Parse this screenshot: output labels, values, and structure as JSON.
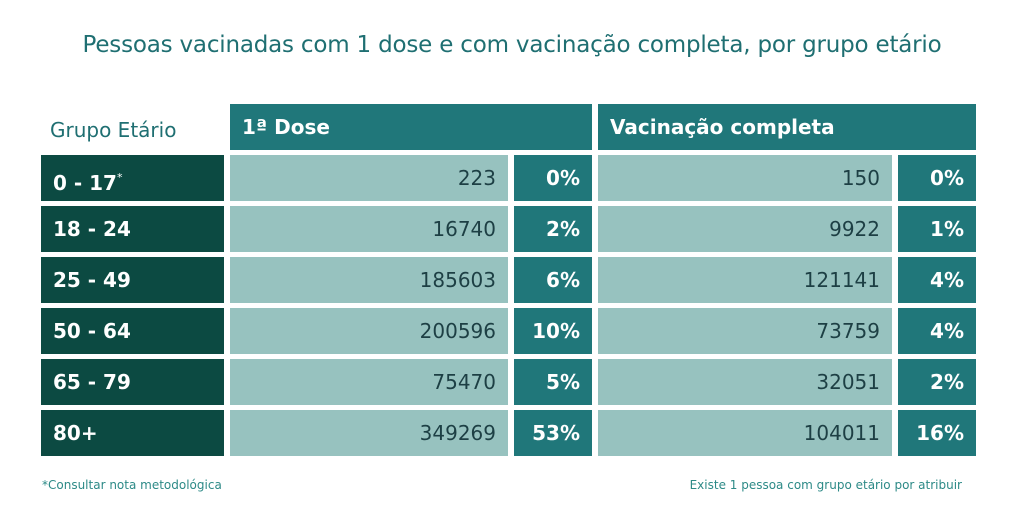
{
  "title": "Pessoas vacinadas com 1 dose e com vacinação completa, por grupo etário",
  "header": {
    "group_label": "Grupo Etário",
    "first_dose_label": "1ª Dose",
    "complete_label": "Vacinação completa"
  },
  "rows": [
    {
      "group": "0 - 17",
      "note": "*",
      "first_dose": "223",
      "first_dose_pct": "0%",
      "complete": "150",
      "complete_pct": "0%"
    },
    {
      "group": "18 - 24",
      "note": "",
      "first_dose": "16740",
      "first_dose_pct": "2%",
      "complete": "9922",
      "complete_pct": "1%"
    },
    {
      "group": "25 - 49",
      "note": "",
      "first_dose": "185603",
      "first_dose_pct": "6%",
      "complete": "121141",
      "complete_pct": "4%"
    },
    {
      "group": "50 - 64",
      "note": "",
      "first_dose": "200596",
      "first_dose_pct": "10%",
      "complete": "73759",
      "complete_pct": "4%"
    },
    {
      "group": "65 - 79",
      "note": "",
      "first_dose": "75470",
      "first_dose_pct": "5%",
      "complete": "32051",
      "complete_pct": "2%"
    },
    {
      "group": "80+",
      "note": "",
      "first_dose": "349269",
      "first_dose_pct": "53%",
      "complete": "104011",
      "complete_pct": "16%"
    }
  ],
  "footer": {
    "note": "*Consultar nota metodológica",
    "unassigned": "Existe 1 pessoa com grupo etário por atribuir"
  },
  "colors": {
    "title": "#1f6f72",
    "header_bg": "#20777a",
    "group_bg": "#0c4a42",
    "value_bg": "#97c2bf",
    "pct_bg": "#20777a"
  },
  "chart_data": {
    "type": "table",
    "title": "Pessoas vacinadas com 1 dose e com vacinação completa, por grupo etário",
    "columns": [
      "Grupo Etário",
      "1ª Dose",
      "1ª Dose %",
      "Vacinação completa",
      "Vacinação completa %"
    ],
    "rows": [
      [
        "0 - 17*",
        223,
        "0%",
        150,
        "0%"
      ],
      [
        "18 - 24",
        16740,
        "2%",
        9922,
        "1%"
      ],
      [
        "25 - 49",
        185603,
        "6%",
        121141,
        "4%"
      ],
      [
        "50 - 64",
        200596,
        "10%",
        73759,
        "4%"
      ],
      [
        "65 - 79",
        75470,
        "5%",
        32051,
        "2%"
      ],
      [
        "80+",
        349269,
        "53%",
        104011,
        "16%"
      ]
    ]
  }
}
